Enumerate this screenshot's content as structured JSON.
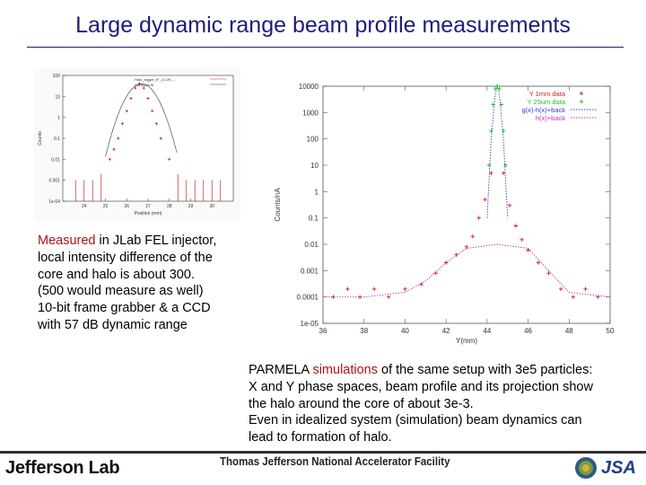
{
  "title": "Large dynamic range beam profile measurements",
  "left_text": {
    "highlight": "Measured",
    "lines": [
      " in JLab FEL injector,",
      "local intensity difference of the",
      "core and halo is about 300.",
      "(500 would measure as well)",
      "10-bit frame grabber & a CCD",
      "with 57 dB dynamic range"
    ]
  },
  "right_text": {
    "prefix": "PARMELA ",
    "highlight": "simulations",
    "lines": [
      " of the same setup with 3e5 particles:",
      "X and Y phase spaces, beam profile and its projection show",
      "the halo around the core of about 3e-3.",
      "Even in idealized system (simulation) beam dynamics can",
      "lead to formation of halo."
    ]
  },
  "footer": {
    "logo": "Jefferson Lab",
    "facility": "Thomas Jefferson National Accelerator Facility",
    "jsa": "JSA"
  },
  "colors": {
    "title": "#1d1d7a",
    "highlight": "#b01010",
    "red_data": "#d02020",
    "green_data": "#20c020",
    "blue_fit": "#3040d0",
    "magenta_fit": "#c030c0"
  },
  "chart_data": [
    {
      "type": "scatter",
      "title": "",
      "legend": [
        "Halo_tagger_IF_21-09_...",
        "Gaussian fit"
      ],
      "xlabel": "Position (mm)",
      "ylabel": "Counts",
      "x_ticks": [
        "24",
        "25",
        "26",
        "27",
        "28",
        "29",
        "30"
      ],
      "y_ticks": [
        "100",
        "10",
        "1",
        "0.1",
        "0.01",
        "0.001",
        "1e-04"
      ],
      "xlim": [
        23,
        31
      ],
      "ylim_log10": [
        -4,
        2
      ],
      "series": [
        {
          "x": [
            23.6,
            24.0,
            24.4,
            24.8,
            25.2,
            25.4,
            25.6,
            25.8,
            26.0,
            26.2,
            26.4,
            26.6,
            26.8,
            27.0,
            27.2,
            27.4,
            27.6,
            28.0,
            28.4,
            28.8,
            29.2,
            29.6,
            30.0,
            30.4
          ],
          "y": [
            0.001,
            0.001,
            0.001,
            0.002,
            0.01,
            0.03,
            0.1,
            0.5,
            2,
            8,
            25,
            40,
            25,
            8,
            2,
            0.5,
            0.1,
            0.01,
            0.002,
            0.001,
            0.001,
            0.001,
            0.001,
            0.001
          ]
        }
      ]
    },
    {
      "type": "scatter",
      "title": "",
      "xlabel": "Y(mm)",
      "ylabel": "Counts/nA",
      "x_ticks": [
        "36",
        "38",
        "40",
        "42",
        "44",
        "46",
        "48",
        "50"
      ],
      "y_ticks": [
        "10000",
        "1000",
        "100",
        "10",
        "1",
        "0.1",
        "0.01",
        "0.001",
        "0.0001",
        "1e-05"
      ],
      "xlim": [
        36,
        50
      ],
      "ylim_log10": [
        -5,
        4
      ],
      "legend_position": "top-right",
      "series": [
        {
          "name": "Y 1mm data",
          "x": [
            36.5,
            37.2,
            37.8,
            38.5,
            39.2,
            40.0,
            40.8,
            41.5,
            42.0,
            42.5,
            43.0,
            43.3,
            43.6,
            43.9,
            44.2,
            44.5,
            44.8,
            45.1,
            45.4,
            45.7,
            46.0,
            46.5,
            47.0,
            47.6,
            48.2,
            48.8,
            49.4
          ],
          "y": [
            0.0001,
            0.0002,
            0.0001,
            0.0002,
            0.0001,
            0.0002,
            0.0003,
            0.0008,
            0.002,
            0.004,
            0.008,
            0.02,
            0.1,
            0.5,
            5,
            10000,
            5,
            0.3,
            0.05,
            0.015,
            0.006,
            0.002,
            0.0008,
            0.0002,
            0.0001,
            0.0002,
            0.0001
          ]
        },
        {
          "name": "Y 25um data",
          "x": [
            44.1,
            44.2,
            44.3,
            44.4,
            44.5,
            44.6,
            44.7,
            44.8,
            44.9
          ],
          "y": [
            10,
            200,
            2000,
            8000,
            10000,
            8000,
            2000,
            200,
            10
          ]
        },
        {
          "name": "g(x)-h(x)+back",
          "x": [
            44.0,
            44.2,
            44.4,
            44.5,
            44.6,
            44.8,
            45.0
          ],
          "y": [
            0.1,
            100,
            5000,
            10000,
            5000,
            100,
            0.1
          ]
        },
        {
          "name": "h(x)+back",
          "x": [
            36.0,
            38.0,
            40.0,
            41.0,
            42.0,
            43.0,
            44.5,
            46.0,
            47.0,
            48.0,
            50.0
          ],
          "y": [
            0.0001,
            0.0001,
            0.00015,
            0.0004,
            0.002,
            0.007,
            0.01,
            0.007,
            0.001,
            0.00015,
            0.0001
          ]
        }
      ]
    }
  ]
}
